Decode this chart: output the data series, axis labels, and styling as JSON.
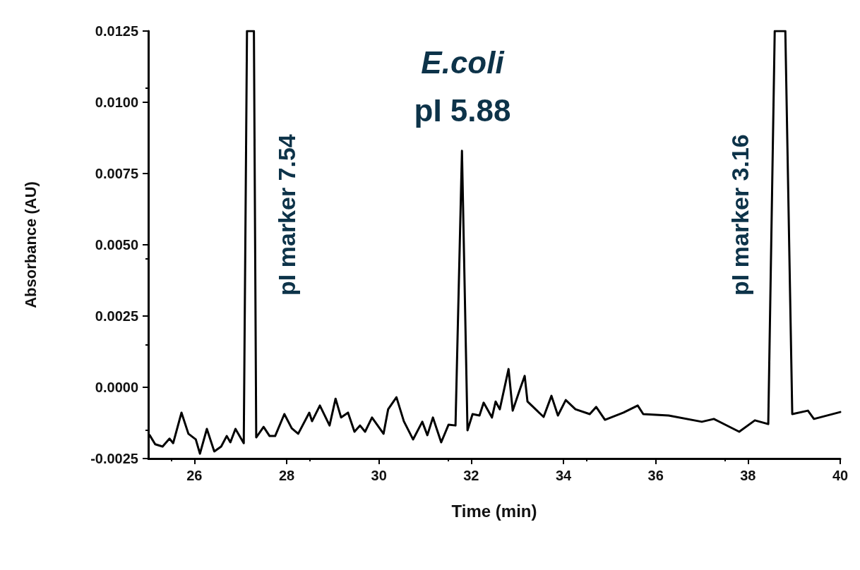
{
  "chart_data": {
    "type": "line",
    "xlabel": "Time (min)",
    "ylabel": "Absorbance (AU)",
    "xlim": [
      25,
      40
    ],
    "ylim": [
      -0.0025,
      0.0125
    ],
    "xticks": [
      26,
      28,
      30,
      32,
      34,
      36,
      38,
      40
    ],
    "yticks": [
      {
        "value": -0.0025,
        "label": "-0.0025"
      },
      {
        "value": 0,
        "label": "0.0000"
      },
      {
        "value": 0.0025,
        "label": "0.0025"
      },
      {
        "value": 0.005,
        "label": "0.0050"
      },
      {
        "value": 0.0075,
        "label": "0.0075"
      },
      {
        "value": 0.01,
        "label": "0.0100"
      },
      {
        "value": 0.0125,
        "label": "0.0125"
      }
    ],
    "grid": false,
    "marker": "none",
    "line_style": "solid",
    "series": [
      {
        "color": "#000000",
        "x": [
          25.03,
          25.15,
          25.31,
          25.46,
          25.54,
          25.72,
          25.87,
          26.03,
          26.12,
          26.27,
          26.43,
          26.58,
          26.7,
          26.78,
          26.89,
          27.07,
          27.14,
          27.29,
          27.34,
          27.5,
          27.63,
          27.75,
          27.95,
          28.11,
          28.25,
          28.49,
          28.55,
          28.72,
          28.93,
          29.06,
          29.18,
          29.33,
          29.47,
          29.59,
          29.7,
          29.85,
          30.1,
          30.2,
          30.38,
          30.54,
          30.74,
          30.94,
          31.05,
          31.17,
          31.35,
          31.51,
          31.66,
          31.8,
          31.92,
          32.03,
          32.18,
          32.27,
          32.45,
          32.53,
          32.62,
          32.81,
          32.9,
          33.04,
          33.16,
          33.22,
          33.57,
          33.74,
          33.88,
          34.05,
          34.26,
          34.57,
          34.71,
          34.9,
          35.3,
          35.61,
          35.73,
          36.28,
          37,
          37.26,
          37.81,
          38.15,
          38.44,
          38.58,
          38.81,
          38.96,
          39.3,
          39.43,
          40
        ],
        "values": [
          -0.00168,
          -0.002,
          -0.00208,
          -0.0018,
          -0.00196,
          -0.00089,
          -0.00163,
          -0.00183,
          -0.00233,
          -0.00146,
          -0.00225,
          -0.00208,
          -0.00171,
          -0.00193,
          -0.00146,
          -0.00196,
          0.0125,
          0.0125,
          -0.00176,
          -0.00139,
          -0.00171,
          -0.00171,
          -0.00094,
          -0.00144,
          -0.00163,
          -0.00089,
          -0.00119,
          -0.00064,
          -0.00134,
          -0.0004,
          -0.00106,
          -0.00089,
          -0.00156,
          -0.00134,
          -0.00156,
          -0.00106,
          -0.00163,
          -0.00077,
          -0.00035,
          -0.00119,
          -0.00183,
          -0.00121,
          -0.00168,
          -0.00106,
          -0.00193,
          -0.00131,
          -0.00134,
          0.0083,
          -0.00151,
          -0.00094,
          -0.00099,
          -0.00054,
          -0.00106,
          -0.0005,
          -0.00077,
          0.00064,
          -0.00082,
          -0.00015,
          0.0004,
          -0.0005,
          -0.00104,
          -0.0003,
          -0.00099,
          -0.00045,
          -0.00077,
          -0.00094,
          -0.00069,
          -0.00114,
          -0.00089,
          -0.00064,
          -0.00094,
          -0.00099,
          -0.00121,
          -0.00111,
          -0.00156,
          -0.00116,
          -0.00129,
          0.0125,
          0.0125,
          -0.00094,
          -0.00082,
          -0.00111,
          -0.00087
        ]
      }
    ],
    "annotations": [
      "pI marker 7.54",
      "E.coli",
      "pI 5.88",
      "pI marker 3.16"
    ]
  }
}
